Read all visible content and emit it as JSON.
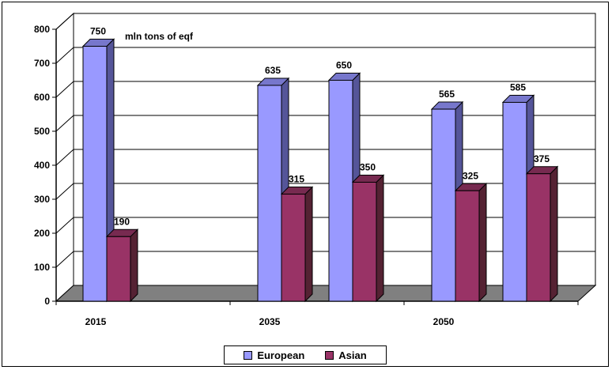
{
  "chart_data": {
    "type": "bar",
    "categories": [
      "2015",
      "2035",
      "2050"
    ],
    "groups": [
      {
        "category": "2015",
        "bars": [
          {
            "series": "European",
            "value": 750
          },
          {
            "series": "Asian",
            "value": 190
          }
        ]
      },
      {
        "category": "2035",
        "bars": [
          {
            "series": "European",
            "value": 635
          },
          {
            "series": "Asian",
            "value": 315
          },
          {
            "series": "European",
            "value": 650
          },
          {
            "series": "Asian",
            "value": 350
          }
        ]
      },
      {
        "category": "2050",
        "bars": [
          {
            "series": "European",
            "value": 565
          },
          {
            "series": "Asian",
            "value": 325
          },
          {
            "series": "European",
            "value": 585
          },
          {
            "series": "Asian",
            "value": 375
          }
        ]
      }
    ],
    "series": [
      {
        "name": "European",
        "color": "#9999ff"
      },
      {
        "name": "Asian",
        "color": "#993366"
      }
    ],
    "annotation": "mln tons of eqf",
    "ylim": [
      0,
      800
    ],
    "yticks": [
      "0",
      "100",
      "200",
      "300",
      "400",
      "500",
      "600",
      "700",
      "800"
    ],
    "grid": true,
    "legend_position": "bottom",
    "style": "3d"
  },
  "legend": {
    "european": "European",
    "asian": "Asian"
  },
  "colors": {
    "european": "#9999ff",
    "european_side": "#555599",
    "european_top": "#7777cc",
    "asian": "#993366",
    "asian_side": "#552233",
    "asian_top": "#772a50",
    "floor": "#808080"
  }
}
